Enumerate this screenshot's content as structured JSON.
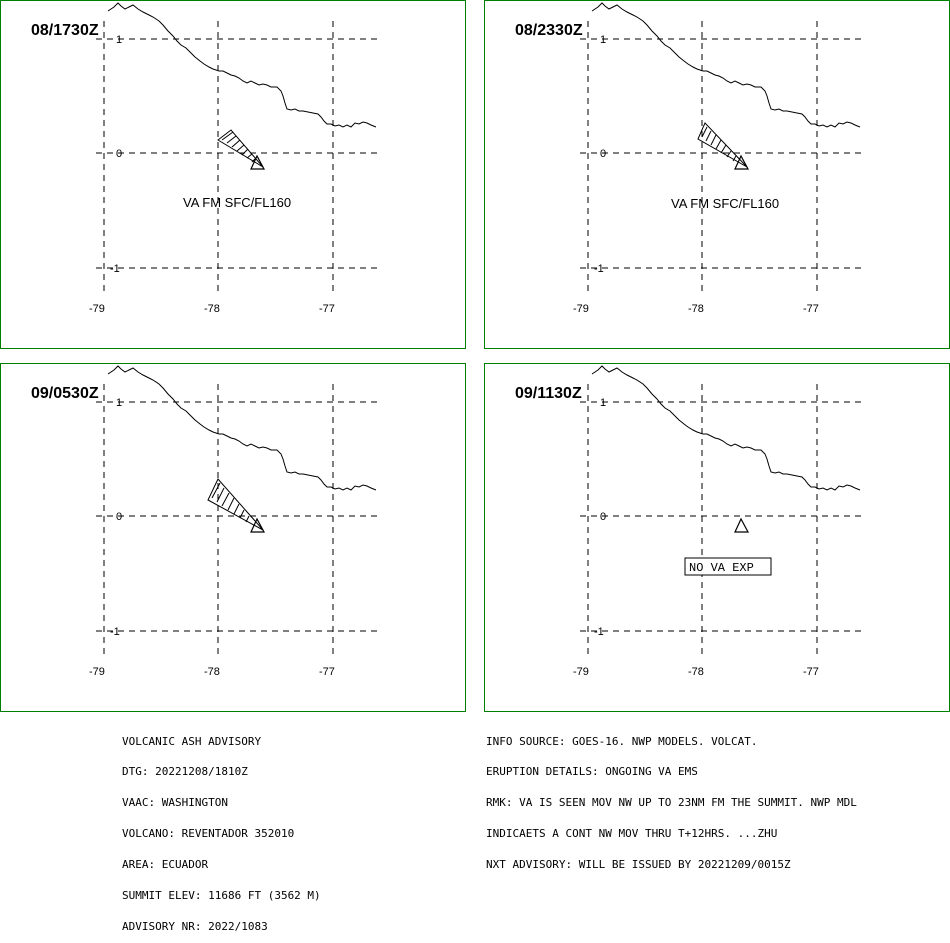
{
  "panels": [
    {
      "id": "p1",
      "time_label": "08/1730Z",
      "label": "VA FM SFC/FL160",
      "label_boxed": false,
      "cloud": true
    },
    {
      "id": "p2",
      "time_label": "08/2330Z",
      "label": "VA FM SFC/FL160",
      "label_boxed": false,
      "cloud": true
    },
    {
      "id": "p3",
      "time_label": "09/0530Z",
      "label": "",
      "label_boxed": false,
      "cloud": true
    },
    {
      "id": "p4",
      "time_label": "09/1130Z",
      "label": "NO VA EXP",
      "label_boxed": true,
      "cloud": false
    }
  ],
  "axes": {
    "lon_ticks": [
      "-79",
      "-78",
      "-77"
    ],
    "lat_ticks": [
      "1",
      "0",
      "-1"
    ]
  },
  "advisory_left": [
    "VOLCANIC ASH ADVISORY",
    "DTG: 20221208/1810Z",
    "VAAC: WASHINGTON",
    "VOLCANO: REVENTADOR 352010",
    "AREA: ECUADOR",
    "SUMMIT ELEV: 11686 FT (3562 M)",
    "ADVISORY NR: 2022/1083"
  ],
  "advisory_right": [
    "INFO SOURCE: GOES-16. NWP MODELS. VOLCAT.",
    "ERUPTION DETAILS: ONGOING VA EMS",
    "RMK: VA IS SEEN MOV NW UP TO 23NM FM THE SUMMIT. NWP MDL",
    "INDICAETS A CONT NW MOV THRU T+12HRS. ...ZHU",
    "NXT ADVISORY: WILL BE ISSUED BY 20221209/0015Z"
  ],
  "colors": {
    "border": "#008000",
    "ink": "#000000"
  }
}
